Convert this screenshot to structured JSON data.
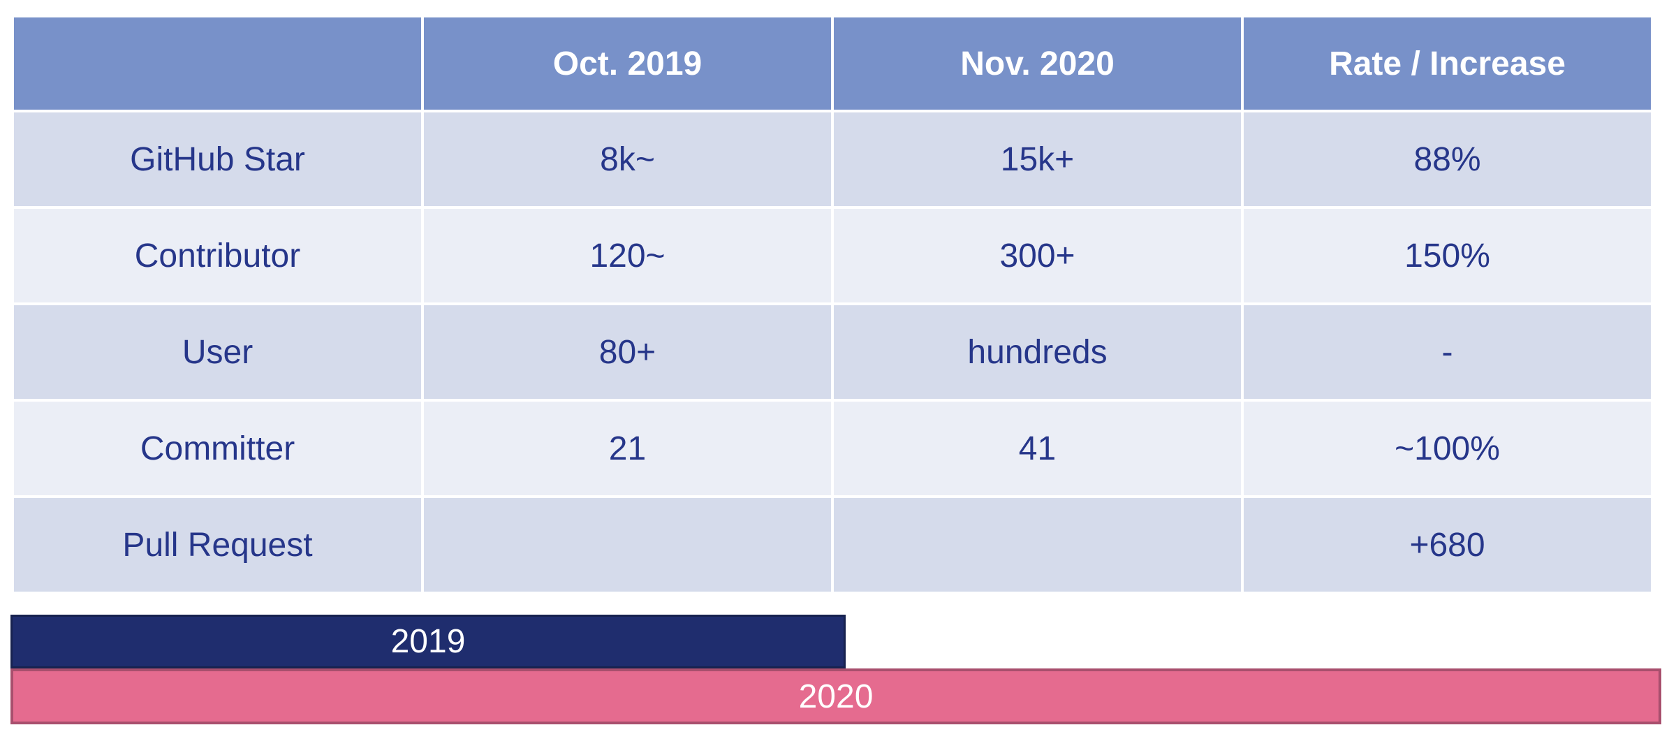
{
  "table": {
    "header": [
      null,
      "Oct. 2019",
      "Nov. 2020",
      "Rate / Increase"
    ],
    "rows": [
      [
        "GitHub Star",
        "8k~",
        "15k+",
        "88%"
      ],
      [
        "Contributor",
        "120~",
        "300+",
        "150%"
      ],
      [
        "User",
        "80+",
        "hundreds",
        "-"
      ],
      [
        "Committer",
        "21",
        "41",
        "~100%"
      ],
      [
        "Pull Request",
        null,
        null,
        "+680"
      ]
    ]
  },
  "bars": [
    {
      "label": "2019"
    },
    {
      "label": "2020"
    }
  ]
}
